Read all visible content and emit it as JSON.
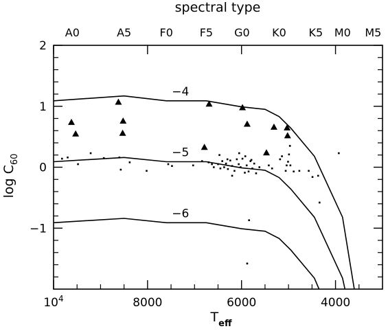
{
  "chart_data": {
    "type": "scatter",
    "title": "spectral type",
    "xlabel": {
      "main": "T",
      "sub": "eff"
    },
    "ylabel": {
      "main": "log C",
      "sub": "60"
    },
    "xlim": [
      10000,
      3000
    ],
    "ylim": [
      -2,
      2
    ],
    "x_ticks": [
      {
        "value": 10000,
        "label": "10",
        "sup": "4"
      },
      {
        "value": 8000,
        "label": "8000",
        "sup": ""
      },
      {
        "value": 6000,
        "label": "6000",
        "sup": ""
      },
      {
        "value": 4000,
        "label": "4000",
        "sup": ""
      }
    ],
    "x_minor_ticks": [
      9500,
      9000,
      8500,
      7500,
      7000,
      6500,
      5500,
      5000,
      4500,
      3500
    ],
    "y_ticks": [
      {
        "value": 2,
        "label": "2"
      },
      {
        "value": 1,
        "label": "1"
      },
      {
        "value": 0,
        "label": "0"
      },
      {
        "value": -1,
        "label": "−1"
      }
    ],
    "y_minor_ticks": [
      1.8,
      1.6,
      1.4,
      1.2,
      0.8,
      0.6,
      0.4,
      0.2,
      -0.2,
      -0.4,
      -0.6,
      -0.8,
      -1.2,
      -1.4,
      -1.6,
      -1.8
    ],
    "top_ticks": [
      {
        "label": "A0",
        "teff": 9600
      },
      {
        "label": "A5",
        "teff": 8500
      },
      {
        "label": "F0",
        "teff": 7600
      },
      {
        "label": "F5",
        "teff": 6750
      },
      {
        "label": "G0",
        "teff": 5990
      },
      {
        "label": "K0",
        "teff": 5200
      },
      {
        "label": "K5",
        "teff": 4420
      },
      {
        "label": "M0",
        "teff": 3850
      },
      {
        "label": "M5",
        "teff": 3200
      }
    ],
    "curves": [
      {
        "label": "−4",
        "label_at": [
          7300,
          1.18
        ],
        "points": [
          [
            10000,
            1.09
          ],
          [
            8500,
            1.17
          ],
          [
            7600,
            1.09
          ],
          [
            6750,
            1.09
          ],
          [
            6000,
            0.99
          ],
          [
            5500,
            0.95
          ],
          [
            5200,
            0.83
          ],
          [
            4950,
            0.64
          ],
          [
            4450,
            0.18
          ],
          [
            3850,
            -0.82
          ],
          [
            3600,
            -2
          ]
        ]
      },
      {
        "label": "−5",
        "label_at": [
          7300,
          0.18
        ],
        "points": [
          [
            10000,
            0.09
          ],
          [
            8500,
            0.16
          ],
          [
            7600,
            0.09
          ],
          [
            6750,
            0.09
          ],
          [
            6000,
            -0.01
          ],
          [
            5500,
            -0.05
          ],
          [
            5200,
            -0.17
          ],
          [
            4950,
            -0.36
          ],
          [
            4450,
            -0.82
          ],
          [
            3850,
            -1.82
          ],
          [
            3800,
            -2
          ]
        ]
      },
      {
        "label": "−6",
        "label_at": [
          7300,
          -0.82
        ],
        "points": [
          [
            10000,
            -0.91
          ],
          [
            8500,
            -0.84
          ],
          [
            7600,
            -0.91
          ],
          [
            6750,
            -0.91
          ],
          [
            6000,
            -1.01
          ],
          [
            5500,
            -1.05
          ],
          [
            5200,
            -1.17
          ],
          [
            4950,
            -1.36
          ],
          [
            4450,
            -1.82
          ],
          [
            4350,
            -2
          ]
        ]
      }
    ],
    "series": [
      {
        "marker": "triangle",
        "points": [
          [
            9620,
            0.74
          ],
          [
            9530,
            0.55
          ],
          [
            8620,
            1.07
          ],
          [
            8520,
            0.76
          ],
          [
            8530,
            0.56
          ],
          [
            6790,
            0.33
          ],
          [
            6690,
            1.04
          ],
          [
            5980,
            0.98
          ],
          [
            5880,
            0.71
          ],
          [
            5470,
            0.24
          ],
          [
            5310,
            0.66
          ],
          [
            5030,
            0.65
          ],
          [
            5020,
            0.52
          ]
        ]
      },
      {
        "marker": "square",
        "points": [
          [
            9820,
            0.14
          ],
          [
            9700,
            0.16
          ],
          [
            9480,
            0.05
          ],
          [
            9210,
            0.23
          ],
          [
            8930,
            0.15
          ],
          [
            8600,
            0.16
          ],
          [
            8570,
            -0.04
          ],
          [
            8380,
            0.08
          ],
          [
            8020,
            -0.06
          ],
          [
            7560,
            0.05
          ],
          [
            7480,
            0.02
          ],
          [
            7030,
            0.03
          ],
          [
            6840,
            0.1
          ],
          [
            6700,
            0.08
          ],
          [
            6630,
            0.05
          ],
          [
            6590,
            0
          ],
          [
            6500,
            0.05
          ],
          [
            6450,
            -0.02
          ],
          [
            6410,
            0.1
          ],
          [
            6370,
            0
          ],
          [
            6330,
            0.06
          ],
          [
            6290,
            -0.03
          ],
          [
            6240,
            0.11
          ],
          [
            6200,
            0.02
          ],
          [
            6150,
            -0.06
          ],
          [
            6100,
            0.13
          ],
          [
            6060,
            0.05
          ],
          [
            6020,
            0
          ],
          [
            5980,
            0.14
          ],
          [
            5930,
            -0.09
          ],
          [
            5890,
            0.03
          ],
          [
            5850,
            -0.07
          ],
          [
            5810,
            0.1
          ],
          [
            5770,
            -0.02
          ],
          [
            5730,
            0.06
          ],
          [
            5690,
            -0.1
          ],
          [
            6470,
            0.2
          ],
          [
            6300,
            0.13
          ],
          [
            6050,
            0.23
          ],
          [
            5920,
            0.18
          ],
          [
            5790,
            0.12
          ],
          [
            5620,
            0
          ],
          [
            5420,
            0.03
          ],
          [
            5350,
            -0.02
          ],
          [
            5180,
            0.13
          ],
          [
            5140,
            0.18
          ],
          [
            5060,
            -0.06
          ],
          [
            5040,
            0.03
          ],
          [
            5010,
            0.09
          ],
          [
            4990,
            0.21
          ],
          [
            4970,
            0.35
          ],
          [
            4960,
            0.03
          ],
          [
            4890,
            -0.07
          ],
          [
            4770,
            -0.06
          ],
          [
            4570,
            -0.06
          ],
          [
            4490,
            -0.16
          ],
          [
            4370,
            -0.14
          ],
          [
            4340,
            -0.58
          ],
          [
            3930,
            0.23
          ],
          [
            6200,
            -0.14
          ],
          [
            5840,
            -0.87
          ],
          [
            5880,
            -1.58
          ]
        ]
      }
    ]
  }
}
